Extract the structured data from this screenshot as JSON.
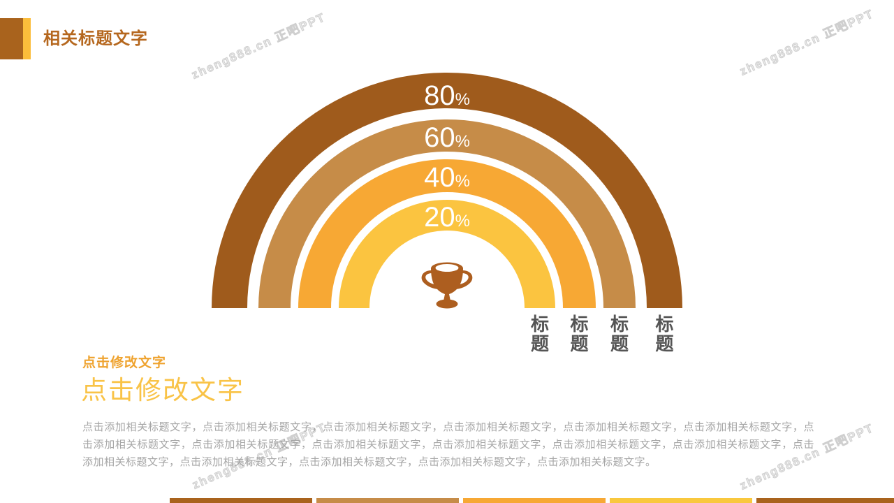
{
  "header": {
    "title": "相关标题文字"
  },
  "watermark": {
    "text": "zheng888.cn 正吧PPT"
  },
  "chart_data": {
    "type": "semicircle-ring-gauge",
    "title": "",
    "unit": "%",
    "legend_position": "none",
    "center_icon": "trophy",
    "value_text_color": "#FFFFFF",
    "axis_label_color": "#555555",
    "rings": [
      {
        "value": 80,
        "label": "80",
        "unit": "%",
        "color": "#9F5B1C",
        "axis_label": "标题"
      },
      {
        "value": 60,
        "label": "60",
        "unit": "%",
        "color": "#C68C48",
        "axis_label": "标题"
      },
      {
        "value": 40,
        "label": "40",
        "unit": "%",
        "color": "#F7A834",
        "axis_label": "标题"
      },
      {
        "value": 20,
        "label": "20",
        "unit": "%",
        "color": "#FBC440",
        "axis_label": "标题"
      }
    ]
  },
  "content": {
    "subtitle": "点击修改文字",
    "title": "点击修改文字",
    "body": "点击添加相关标题文字，点击添加相关标题文字，点击添加相关标题文字，点击添加相关标题文字，点击添加相关标题文字，点击添加相关标题文字，点击添加相关标题文字，点击添加相关标题文字，点击添加相关标题文字，点击添加相关标题文字，点击添加相关标题文字，点击添加相关标题文字，点击添加相关标题文字，点击添加相关标题文字，点击添加相关标题文字，点击添加相关标题文字，点击添加相关标题文字。"
  },
  "footer": {
    "bar_colors": [
      "#A9631D",
      "#C68C48",
      "#F7A834",
      "#F9C83E",
      "#A9631D"
    ]
  },
  "theme": {
    "header_brown": "#A9631D",
    "header_yellow": "#FBBD3B",
    "header_title_color": "#B5671E",
    "subtitle_color": "#EFA32F",
    "content_title_color": "#F9C347",
    "body_color": "#A6A6A6",
    "trophy_color": "#AD5E1F",
    "watermark_color": "#CFCFCF"
  }
}
